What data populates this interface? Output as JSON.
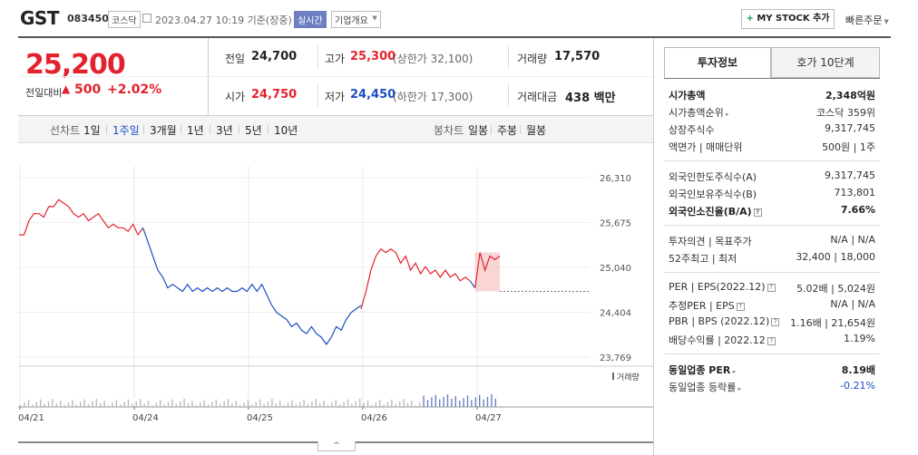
{
  "header": {
    "name": "GST",
    "code": "083450",
    "market": "코스닥",
    "datetime": "2023.04.27 10:19 기준(장중)",
    "realtime": "실시간",
    "company_info": "기업개요",
    "mystock": "MY STOCK 추가",
    "quick_order": "빠른주문"
  },
  "price": {
    "current": "25,200",
    "change_label": "전일대비",
    "change": "500",
    "change_pct": "+2.02%"
  },
  "stats": {
    "prev_label": "전일",
    "prev": "24,700",
    "high_label": "고가",
    "high": "25,300",
    "upper_limit": "(상한가 32,100)",
    "volume_label": "거래량",
    "volume": "17,570",
    "open_label": "시가",
    "open": "24,750",
    "low_label": "저가",
    "low": "24,450",
    "lower_limit": "(하한가 17,300)",
    "amount_label": "거래대금",
    "amount": "438 백만"
  },
  "line_tabs": {
    "label": "선차트",
    "items": [
      "1일",
      "1주일",
      "3개월",
      "1년",
      "3년",
      "5년",
      "10년"
    ],
    "selected": "1주일"
  },
  "candle_tabs": {
    "label": "봉차트",
    "items": [
      "일봉",
      "주봉",
      "월봉"
    ]
  },
  "chart_data": {
    "type": "line",
    "y_ticks": [
      "26,310",
      "25,675",
      "25,040",
      "24,404",
      "23,769"
    ],
    "ylim": [
      23769,
      26310
    ],
    "x_labels": [
      "04/21",
      "04/24",
      "04/25",
      "04/26",
      "04/27"
    ],
    "volume_label": "거래량",
    "series": [
      {
        "color": "#e4222d",
        "values": [
          25500,
          25500,
          25700,
          25800,
          25800,
          25750,
          25900,
          25900,
          26000,
          25950,
          25900,
          25800,
          25750,
          25800,
          25700,
          25750,
          25800,
          25700,
          25600,
          25650,
          25600,
          25600,
          25550,
          25650,
          25500,
          25600
        ]
      },
      {
        "color": "#1a4fc4",
        "values": [
          25600,
          25400,
          25200,
          25000,
          24900,
          24750,
          24800,
          24750,
          24700,
          24800,
          24700,
          24750,
          24700,
          24750,
          24700,
          24750,
          24700,
          24750,
          24700,
          24700,
          24750,
          24700,
          24800,
          24700,
          24800,
          24650,
          24500,
          24400,
          24350,
          24300,
          24200,
          24250,
          24150,
          24100,
          24200,
          24100,
          24050,
          23950,
          24050,
          24200,
          24150,
          24300,
          24400,
          24450,
          24500
        ]
      },
      {
        "color": "#e4222d",
        "values": [
          24450,
          24700,
          25000,
          25200,
          25300,
          25250,
          25300,
          25250,
          25100,
          25200,
          25000,
          25100,
          24950,
          25050,
          24950,
          25000,
          24900,
          25000,
          24900,
          24950,
          24850,
          24900,
          24850
        ]
      },
      {
        "color": "#1a4fc4",
        "values": [
          24850,
          24750
        ]
      },
      {
        "color": "#e4222d",
        "values": [
          24750,
          25250,
          25000,
          25200,
          25150,
          25200
        ]
      }
    ],
    "prev_close": 24700
  },
  "side_tabs": {
    "tab1": "투자정보",
    "tab2": "호가 10단계"
  },
  "invest": {
    "market_cap_label": "시가총액",
    "market_cap": "2,348억원",
    "rank_label": "시가총액순위",
    "rank": "코스닥 359위",
    "shares_label": "상장주식수",
    "shares": "9,317,745",
    "par_label": "액면가 | 매매단위",
    "par": "500원 | 1주",
    "foreign_limit_label": "외국인한도주식수(A)",
    "foreign_limit": "9,317,745",
    "foreign_hold_label": "외국인보유주식수(B)",
    "foreign_hold": "713,801",
    "foreign_ratio_label": "외국인소진율(B/A)",
    "foreign_ratio": "7.66%",
    "opinion_label": "투자의견 | 목표주가",
    "opinion": "N/A | N/A",
    "week52_label": "52주최고 | 최저",
    "week52": "32,400 | 18,000",
    "per_label": "PER | EPS(2022.12)",
    "per": "5.02배 | 5,024원",
    "est_per_label": "추정PER | EPS",
    "est_per": "N/A | N/A",
    "pbr_label": "PBR | BPS (2022.12)",
    "pbr": "1.16배 | 21,654원",
    "div_label": "배당수익률 | 2022.12",
    "div": "1.19%",
    "sector_per_label": "동일업종 PER",
    "sector_per": "8.19배",
    "sector_rate_label": "동일업종 등락률",
    "sector_rate": "-0.21%"
  },
  "toggle": "^"
}
